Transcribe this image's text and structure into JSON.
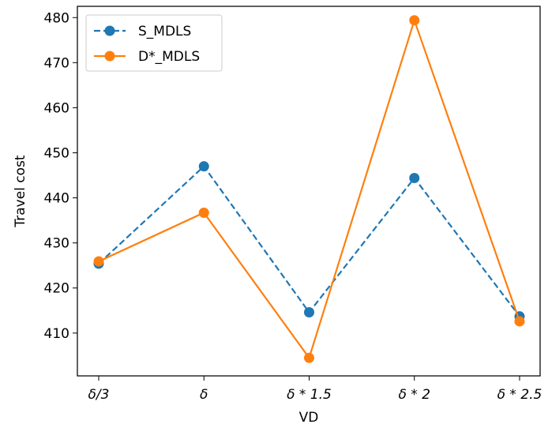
{
  "chart_data": {
    "type": "line",
    "xlabel": "VD",
    "ylabel": "Travel cost",
    "categories": [
      "δ/3",
      "δ",
      "δ * 1.5",
      "δ * 2",
      "δ * 2.5"
    ],
    "ylim": [
      400.5,
      482.5
    ],
    "yticks": [
      410,
      420,
      430,
      440,
      450,
      460,
      470,
      480
    ],
    "grid": false,
    "legend_position": "upper-left",
    "series": [
      {
        "name": "S_MDLS",
        "color": "#1f77b4",
        "line_style": "dashed",
        "marker": "circle",
        "values": [
          425.4,
          447.0,
          414.6,
          444.4,
          413.7
        ]
      },
      {
        "name": "D*_MDLS",
        "color": "#ff7f0e",
        "line_style": "solid",
        "marker": "circle",
        "values": [
          425.9,
          436.7,
          404.5,
          479.4,
          412.6
        ]
      }
    ]
  }
}
